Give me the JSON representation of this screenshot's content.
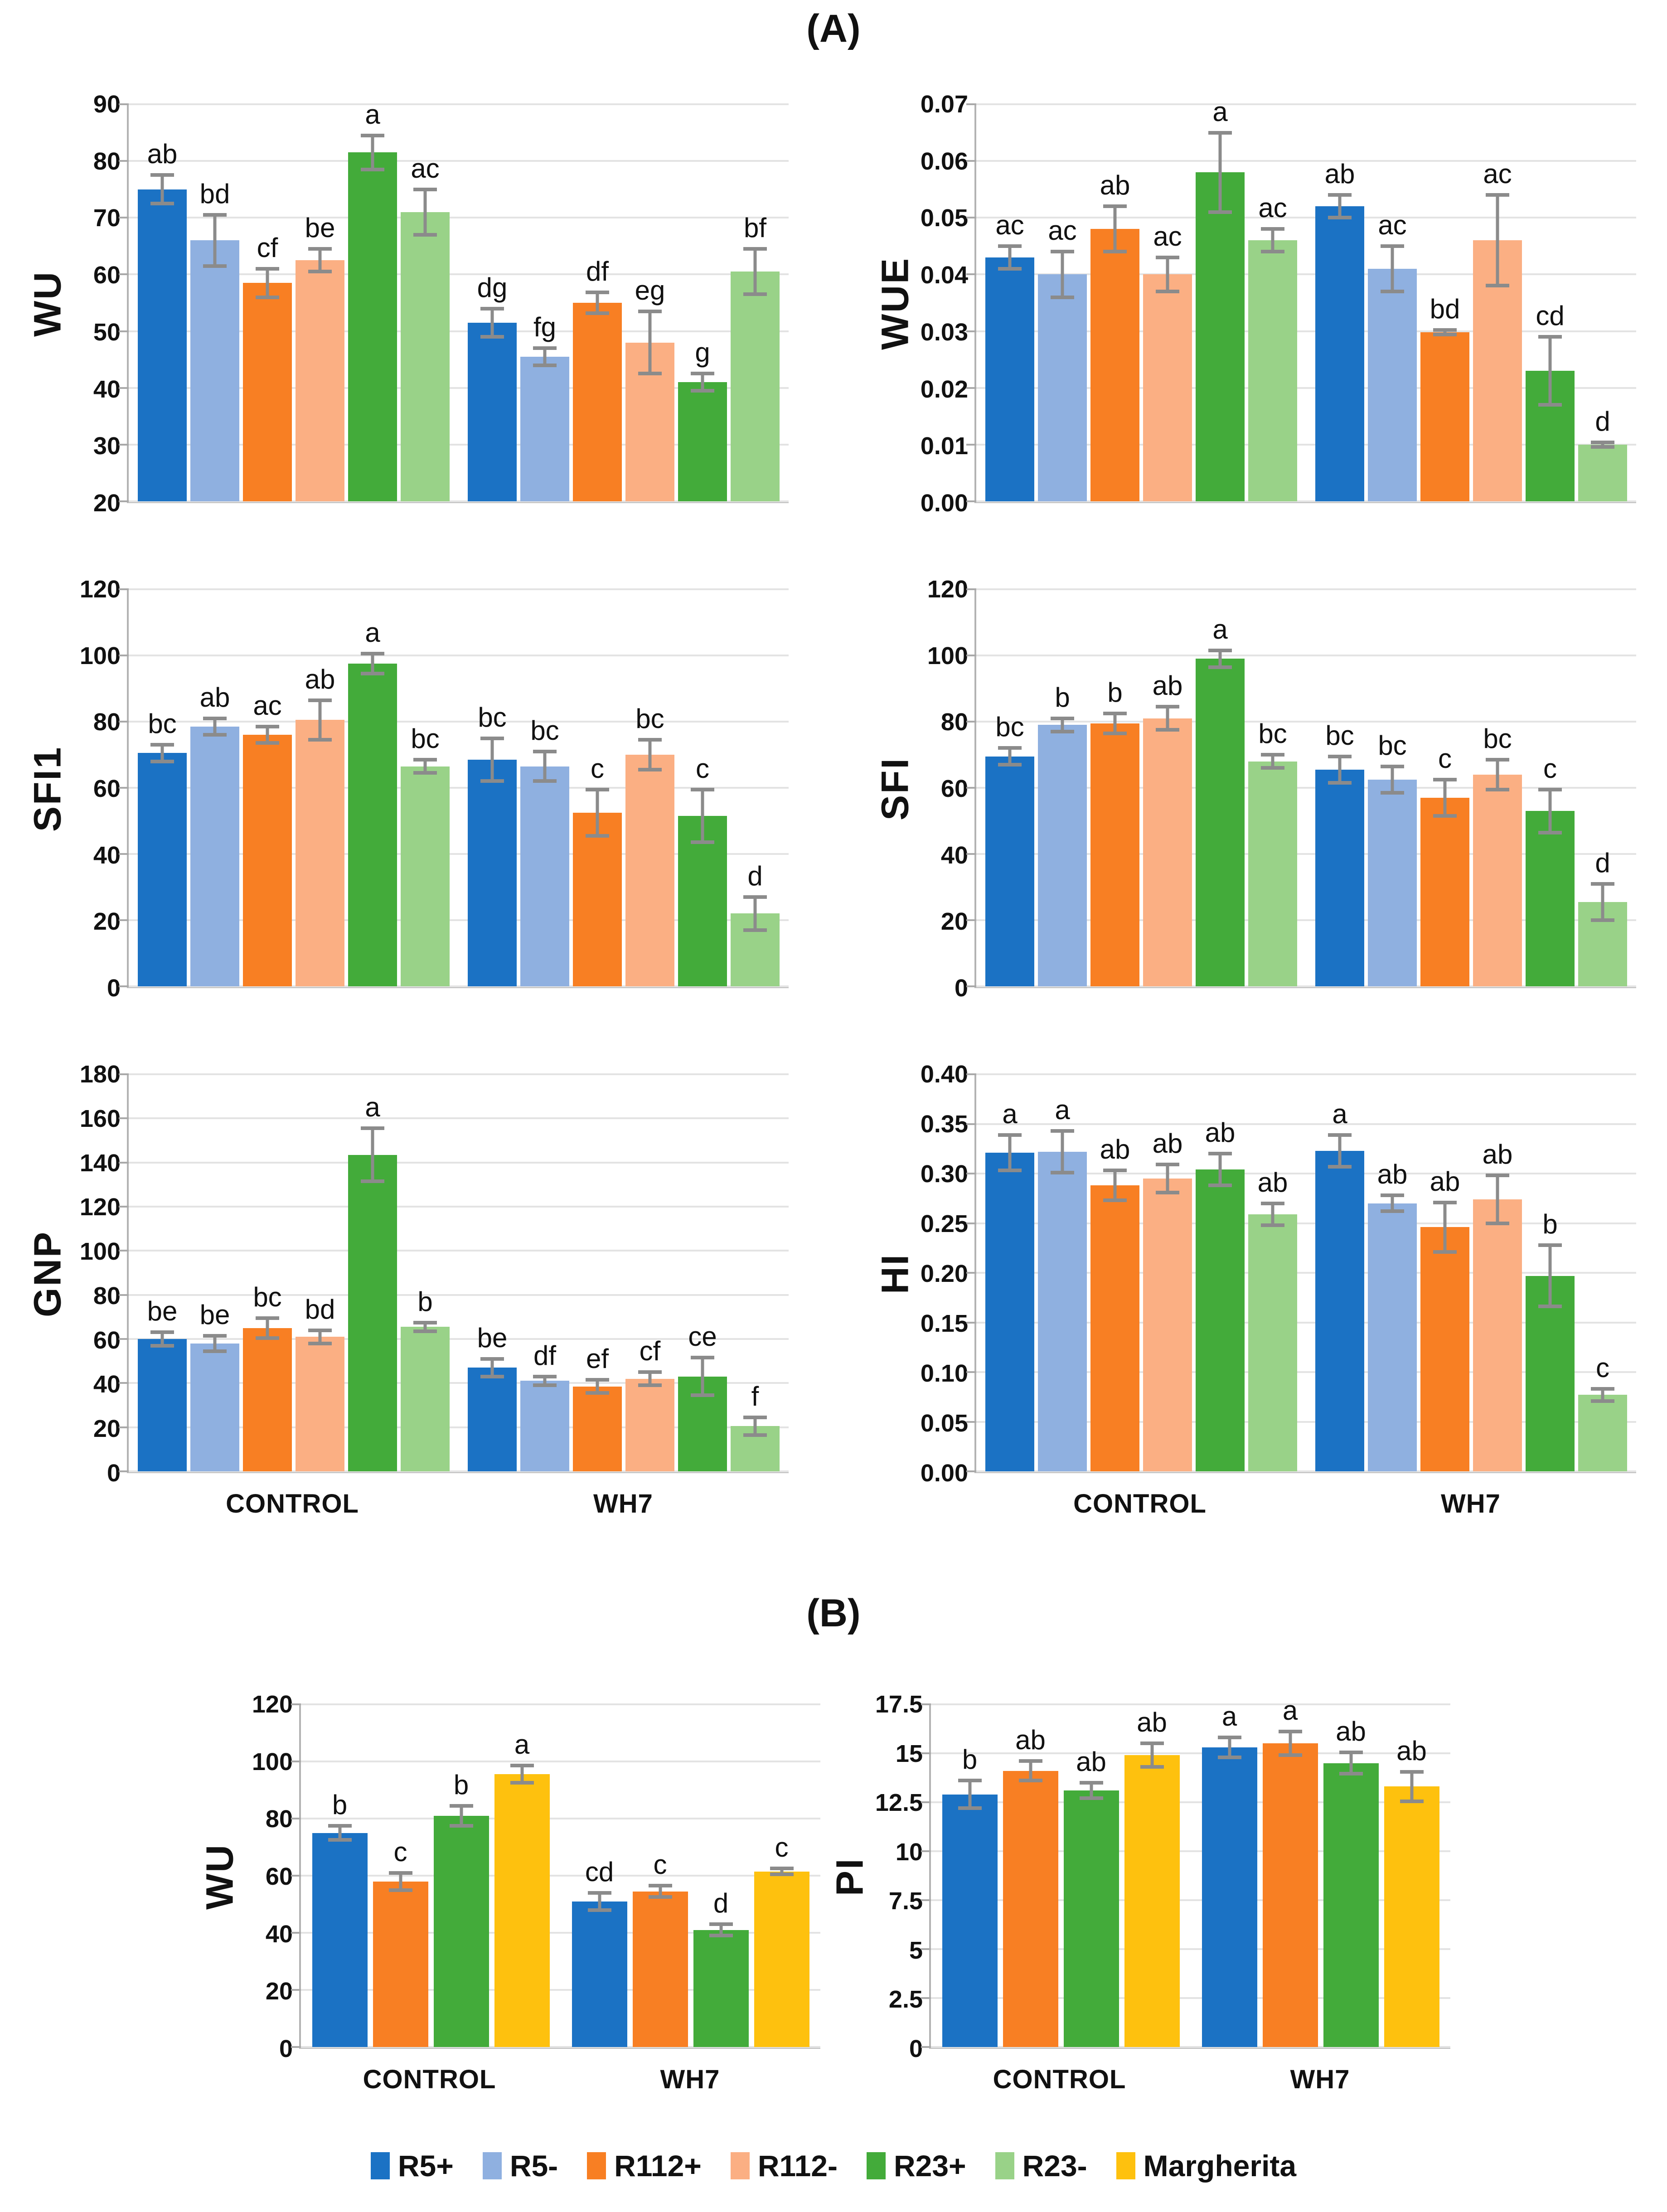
{
  "figure": {
    "panel_a_label": "(A)",
    "panel_b_label": "(B)"
  },
  "legend": {
    "items": [
      {
        "label": "R5+",
        "color": "#1b72c4"
      },
      {
        "label": "R5-",
        "color": "#8fb0e0"
      },
      {
        "label": "R112+",
        "color": "#f87f23"
      },
      {
        "label": "R112-",
        "color": "#fbaf83"
      },
      {
        "label": "R23+",
        "color": "#43ab3a"
      },
      {
        "label": "R23-",
        "color": "#99d288"
      },
      {
        "label": "Margherita",
        "color": "#fec10e"
      }
    ]
  },
  "chart_data": [
    {
      "id": "wu-a",
      "type": "bar",
      "panel": "A",
      "ylabel": "WU",
      "ymin": 20,
      "ymax": 90,
      "ticks": [
        "20",
        "30",
        "40",
        "50",
        "60",
        "70",
        "80",
        "90"
      ],
      "groups": [
        "CONTROL",
        "WH7"
      ],
      "show_group_labels": false,
      "series": [
        "R5+",
        "R5-",
        "R112+",
        "R112-",
        "R23+",
        "R23-"
      ],
      "values": [
        [
          75,
          66,
          58.5,
          62.5,
          81.5,
          71
        ],
        [
          51.5,
          45.5,
          55,
          48,
          41,
          60.5
        ]
      ],
      "errors": [
        [
          2.5,
          4.5,
          2.5,
          2,
          3,
          4
        ],
        [
          2.5,
          1.5,
          1.8,
          5.5,
          1.5,
          4
        ]
      ],
      "sig_labels": [
        [
          "ab",
          "bd",
          "cf",
          "be",
          "a",
          "ac"
        ],
        [
          "dg",
          "fg",
          "df",
          "eg",
          "g",
          "bf"
        ]
      ]
    },
    {
      "id": "wue-a",
      "type": "bar",
      "panel": "A",
      "ylabel": "WUE",
      "ymin": 0,
      "ymax": 0.07,
      "ticks": [
        "0.00",
        "0.01",
        "0.02",
        "0.03",
        "0.04",
        "0.05",
        "0.06",
        "0.07"
      ],
      "groups": [
        "CONTROL",
        "WH7"
      ],
      "show_group_labels": false,
      "series": [
        "R5+",
        "R5-",
        "R112+",
        "R112-",
        "R23+",
        "R23-"
      ],
      "values": [
        [
          0.043,
          0.04,
          0.048,
          0.04,
          0.058,
          0.046
        ],
        [
          0.052,
          0.041,
          0.0298,
          0.046,
          0.023,
          0.01
        ]
      ],
      "errors": [
        [
          0.002,
          0.004,
          0.004,
          0.003,
          0.007,
          0.002
        ],
        [
          0.002,
          0.004,
          0.0004,
          0.008,
          0.006,
          0.0004
        ]
      ],
      "sig_labels": [
        [
          "ac",
          "ac",
          "ab",
          "ac",
          "a",
          "ac"
        ],
        [
          "ab",
          "ac",
          "bd",
          "ac",
          "cd",
          "d"
        ]
      ]
    },
    {
      "id": "sfi1-a",
      "type": "bar",
      "panel": "A",
      "ylabel": "SFI1",
      "ymin": 0,
      "ymax": 120,
      "ticks": [
        "0",
        "20",
        "40",
        "60",
        "80",
        "100",
        "120"
      ],
      "groups": [
        "CONTROL",
        "WH7"
      ],
      "show_group_labels": false,
      "series": [
        "R5+",
        "R5-",
        "R112+",
        "R112-",
        "R23+",
        "R23-"
      ],
      "values": [
        [
          70.5,
          78.5,
          76,
          80.5,
          97.5,
          66.5
        ],
        [
          68.5,
          66.5,
          52.5,
          70,
          51.5,
          22
        ]
      ],
      "errors": [
        [
          2.5,
          2.5,
          2.5,
          6,
          3,
          2
        ],
        [
          6.5,
          4.5,
          7,
          4.5,
          8,
          5
        ]
      ],
      "sig_labels": [
        [
          "bc",
          "ab",
          "ac",
          "ab",
          "a",
          "bc"
        ],
        [
          "bc",
          "bc",
          "c",
          "bc",
          "c",
          "d"
        ]
      ]
    },
    {
      "id": "sfi-a",
      "type": "bar",
      "panel": "A",
      "ylabel": "SFI",
      "ymin": 0,
      "ymax": 120,
      "ticks": [
        "0",
        "20",
        "40",
        "60",
        "80",
        "100",
        "120"
      ],
      "groups": [
        "CONTROL",
        "WH7"
      ],
      "show_group_labels": false,
      "series": [
        "R5+",
        "R5-",
        "R112+",
        "R112-",
        "R23+",
        "R23-"
      ],
      "values": [
        [
          69.5,
          79,
          79.5,
          81,
          99,
          68
        ],
        [
          65.5,
          62.5,
          57,
          64,
          53,
          25.5
        ]
      ],
      "errors": [
        [
          2.5,
          2,
          3,
          3.5,
          2.5,
          2
        ],
        [
          4,
          4,
          5.5,
          4.5,
          6.5,
          5.5
        ]
      ],
      "sig_labels": [
        [
          "bc",
          "b",
          "b",
          "ab",
          "a",
          "bc"
        ],
        [
          "bc",
          "bc",
          "c",
          "bc",
          "c",
          "d"
        ]
      ]
    },
    {
      "id": "gnp-a",
      "type": "bar",
      "panel": "A",
      "ylabel": "GNP",
      "ymin": 0,
      "ymax": 180,
      "ticks": [
        "0",
        "20",
        "40",
        "60",
        "80",
        "100",
        "120",
        "140",
        "160",
        "180"
      ],
      "groups": [
        "CONTROL",
        "WH7"
      ],
      "show_group_labels": true,
      "series": [
        "R5+",
        "R5-",
        "R112+",
        "R112-",
        "R23+",
        "R23-"
      ],
      "values": [
        [
          60,
          58,
          65,
          61,
          143.5,
          65.5
        ],
        [
          47,
          41,
          38.5,
          42,
          43,
          20.5
        ]
      ],
      "errors": [
        [
          3,
          3.5,
          4.5,
          3,
          12,
          2
        ],
        [
          4,
          2,
          3,
          3,
          8.5,
          4
        ]
      ],
      "sig_labels": [
        [
          "be",
          "be",
          "bc",
          "bd",
          "a",
          "b"
        ],
        [
          "be",
          "df",
          "ef",
          "cf",
          "ce",
          "f"
        ]
      ]
    },
    {
      "id": "hi-a",
      "type": "bar",
      "panel": "A",
      "ylabel": "HI",
      "ymin": 0,
      "ymax": 0.4,
      "ticks": [
        "0.00",
        "0.05",
        "0.10",
        "0.15",
        "0.20",
        "0.25",
        "0.30",
        "0.35",
        "0.40"
      ],
      "groups": [
        "CONTROL",
        "WH7"
      ],
      "show_group_labels": true,
      "series": [
        "R5+",
        "R5-",
        "R112+",
        "R112-",
        "R23+",
        "R23-"
      ],
      "values": [
        [
          0.321,
          0.322,
          0.288,
          0.295,
          0.304,
          0.259
        ],
        [
          0.323,
          0.27,
          0.246,
          0.274,
          0.197,
          0.077
        ]
      ],
      "errors": [
        [
          0.018,
          0.021,
          0.015,
          0.014,
          0.016,
          0.011
        ],
        [
          0.016,
          0.008,
          0.025,
          0.024,
          0.031,
          0.006
        ]
      ],
      "sig_labels": [
        [
          "a",
          "a",
          "ab",
          "ab",
          "ab",
          "ab"
        ],
        [
          "a",
          "ab",
          "ab",
          "ab",
          "b",
          "c"
        ]
      ]
    },
    {
      "id": "wu-b",
      "type": "bar",
      "panel": "B",
      "ylabel": "WU",
      "ymin": 0,
      "ymax": 120,
      "ticks": [
        "0",
        "20",
        "40",
        "60",
        "80",
        "100",
        "120"
      ],
      "groups": [
        "CONTROL",
        "WH7"
      ],
      "show_group_labels": true,
      "series": [
        "R5+",
        "R112+",
        "R23+",
        "Margherita"
      ],
      "values": [
        [
          75,
          58,
          81,
          95.5
        ],
        [
          51,
          54.5,
          41,
          61.5
        ]
      ],
      "errors": [
        [
          2.5,
          3,
          3.5,
          3
        ],
        [
          3,
          2,
          2,
          1
        ]
      ],
      "sig_labels": [
        [
          "b",
          "c",
          "b",
          "a"
        ],
        [
          "cd",
          "c",
          "d",
          "c"
        ]
      ]
    },
    {
      "id": "pi-b",
      "type": "bar",
      "panel": "B",
      "ylabel": "PI",
      "ymin": 0,
      "ymax": 17.5,
      "ticks": [
        "0",
        "2.5",
        "5",
        "7.5",
        "10",
        "12.5",
        "15",
        "17.5"
      ],
      "groups": [
        "CONTROL",
        "WH7"
      ],
      "show_group_labels": true,
      "series": [
        "R5+",
        "R112+",
        "R23+",
        "Margherita"
      ],
      "values": [
        [
          12.9,
          14.1,
          13.1,
          14.9
        ],
        [
          15.3,
          15.5,
          14.5,
          13.3
        ]
      ],
      "errors": [
        [
          0.7,
          0.5,
          0.4,
          0.6
        ],
        [
          0.5,
          0.6,
          0.55,
          0.75
        ]
      ],
      "sig_labels": [
        [
          "b",
          "ab",
          "ab",
          "ab"
        ],
        [
          "a",
          "a",
          "ab",
          "ab"
        ]
      ]
    }
  ]
}
